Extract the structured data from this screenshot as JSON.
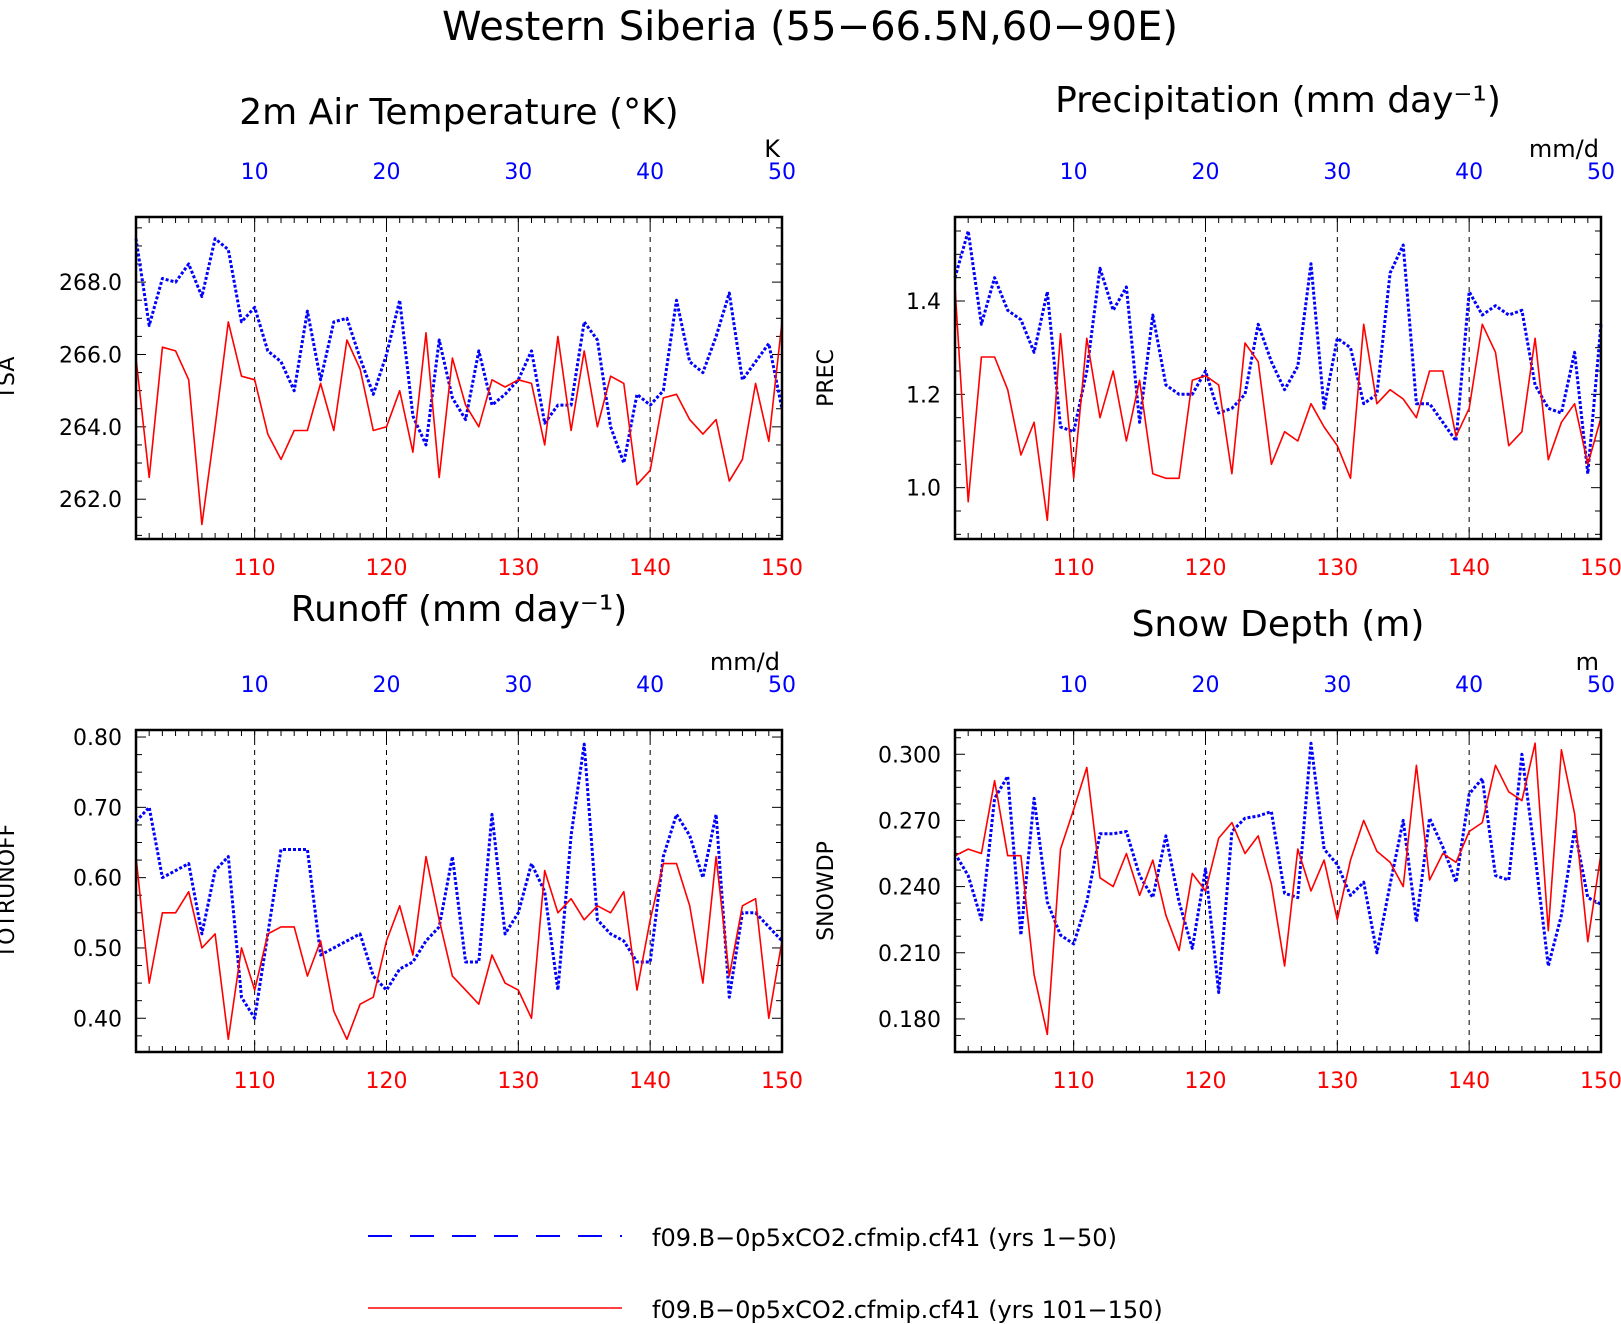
{
  "main_title": "Western Siberia (55−66.5N,60−90E)",
  "colors": {
    "series_a": "#0000ff",
    "series_b": "#ff0000",
    "axis": "#000000"
  },
  "legend": [
    {
      "label": "f09.B−0p5xCO2.cfmip.cf41 (yrs 1−50)",
      "color": "#0000ff",
      "style": "dashed"
    },
    {
      "label": "f09.B−0p5xCO2.cfmip.cf41 (yrs 101−150)",
      "color": "#ff0000",
      "style": "solid"
    }
  ],
  "chart_data": [
    {
      "type": "line",
      "title": "2m Air Temperature (°K)",
      "ylabel": "TSA",
      "units": "K",
      "ylim": [
        260.9,
        269.8
      ],
      "yticks": [
        262.0,
        264.0,
        266.0,
        268.0
      ],
      "ytick_labels": [
        "262.0",
        "264.0",
        "266.0",
        "268.0"
      ],
      "grid_vertical": true,
      "top_axis": {
        "range": [
          1,
          50
        ],
        "ticks": [
          10,
          20,
          30,
          40,
          50
        ],
        "color": "#0000ff"
      },
      "bottom_axis": {
        "range": [
          101,
          150
        ],
        "ticks": [
          110,
          120,
          130,
          140,
          150
        ],
        "color": "#ff0000"
      },
      "series": [
        {
          "name": "f09.B−0p5xCO2.cfmip.cf41 (yrs 1−50)",
          "color": "#0000ff",
          "style": "dashed",
          "x": [
            1,
            2,
            3,
            4,
            5,
            6,
            7,
            8,
            9,
            10,
            11,
            12,
            13,
            14,
            15,
            16,
            17,
            18,
            19,
            20,
            21,
            22,
            23,
            24,
            25,
            26,
            27,
            28,
            29,
            30,
            31,
            32,
            33,
            34,
            35,
            36,
            37,
            38,
            39,
            40,
            41,
            42,
            43,
            44,
            45,
            46,
            47,
            48,
            49,
            50
          ],
          "values": [
            269.2,
            266.8,
            268.1,
            268.0,
            268.5,
            267.6,
            269.2,
            268.9,
            266.9,
            267.3,
            266.1,
            265.8,
            265.0,
            267.2,
            265.3,
            266.9,
            267.0,
            265.9,
            264.9,
            266.0,
            267.5,
            264.3,
            263.5,
            266.4,
            264.8,
            264.2,
            266.1,
            264.6,
            264.9,
            265.3,
            266.1,
            264.1,
            264.6,
            264.6,
            266.9,
            266.4,
            264.0,
            263.0,
            264.9,
            264.6,
            265.0,
            267.5,
            265.8,
            265.5,
            266.5,
            267.7,
            265.3,
            265.8,
            266.3,
            264.5
          ]
        },
        {
          "name": "f09.B−0p5xCO2.cfmip.cf41 (yrs 101−150)",
          "color": "#ff0000",
          "style": "solid",
          "x": [
            101,
            102,
            103,
            104,
            105,
            106,
            107,
            108,
            109,
            110,
            111,
            112,
            113,
            114,
            115,
            116,
            117,
            118,
            119,
            120,
            121,
            122,
            123,
            124,
            125,
            126,
            127,
            128,
            129,
            130,
            131,
            132,
            133,
            134,
            135,
            136,
            137,
            138,
            139,
            140,
            141,
            142,
            143,
            144,
            145,
            146,
            147,
            148,
            149,
            150
          ],
          "values": [
            265.9,
            262.6,
            266.2,
            266.1,
            265.3,
            261.3,
            264.0,
            266.9,
            265.4,
            265.3,
            263.8,
            263.1,
            263.9,
            263.9,
            265.2,
            263.9,
            266.4,
            265.6,
            263.9,
            264.0,
            265.0,
            263.3,
            266.6,
            262.6,
            265.9,
            264.6,
            264.0,
            265.3,
            265.1,
            265.3,
            265.2,
            263.5,
            266.5,
            263.9,
            266.1,
            264.0,
            265.4,
            265.2,
            262.4,
            262.8,
            264.8,
            264.9,
            264.2,
            263.8,
            264.2,
            262.5,
            263.1,
            265.2,
            263.6,
            266.9
          ]
        }
      ]
    },
    {
      "type": "line",
      "title": "Precipitation (mm day⁻¹)",
      "ylabel": "PREC",
      "units": "mm/d",
      "ylim": [
        0.89,
        1.58
      ],
      "yticks": [
        1.0,
        1.2,
        1.4
      ],
      "ytick_labels": [
        "1.0",
        "1.2",
        "1.4"
      ],
      "grid_vertical": true,
      "top_axis": {
        "range": [
          1,
          50
        ],
        "ticks": [
          10,
          20,
          30,
          40,
          50
        ],
        "color": "#0000ff"
      },
      "bottom_axis": {
        "range": [
          101,
          150
        ],
        "ticks": [
          110,
          120,
          130,
          140,
          150
        ],
        "color": "#ff0000"
      },
      "series": [
        {
          "name": "f09.B−0p5xCO2.cfmip.cf41 (yrs 1−50)",
          "color": "#0000ff",
          "style": "dashed",
          "x": [
            1,
            2,
            3,
            4,
            5,
            6,
            7,
            8,
            9,
            10,
            11,
            12,
            13,
            14,
            15,
            16,
            17,
            18,
            19,
            20,
            21,
            22,
            23,
            24,
            25,
            26,
            27,
            28,
            29,
            30,
            31,
            32,
            33,
            34,
            35,
            36,
            37,
            38,
            39,
            40,
            41,
            42,
            43,
            44,
            45,
            46,
            47,
            48,
            49,
            50
          ],
          "values": [
            1.45,
            1.55,
            1.35,
            1.45,
            1.38,
            1.36,
            1.29,
            1.42,
            1.13,
            1.12,
            1.25,
            1.47,
            1.38,
            1.43,
            1.14,
            1.37,
            1.22,
            1.2,
            1.2,
            1.25,
            1.16,
            1.17,
            1.2,
            1.35,
            1.27,
            1.21,
            1.26,
            1.48,
            1.17,
            1.32,
            1.3,
            1.18,
            1.2,
            1.46,
            1.52,
            1.18,
            1.18,
            1.14,
            1.1,
            1.42,
            1.37,
            1.39,
            1.37,
            1.38,
            1.22,
            1.17,
            1.16,
            1.29,
            1.03,
            1.35
          ]
        },
        {
          "name": "f09.B−0p5xCO2.cfmip.cf41 (yrs 101−150)",
          "color": "#ff0000",
          "style": "solid",
          "x": [
            101,
            102,
            103,
            104,
            105,
            106,
            107,
            108,
            109,
            110,
            111,
            112,
            113,
            114,
            115,
            116,
            117,
            118,
            119,
            120,
            121,
            122,
            123,
            124,
            125,
            126,
            127,
            128,
            129,
            130,
            131,
            132,
            133,
            134,
            135,
            136,
            137,
            138,
            139,
            140,
            141,
            142,
            143,
            144,
            145,
            146,
            147,
            148,
            149,
            150
          ],
          "values": [
            1.43,
            0.97,
            1.28,
            1.28,
            1.21,
            1.07,
            1.14,
            0.93,
            1.33,
            1.02,
            1.32,
            1.15,
            1.25,
            1.1,
            1.23,
            1.03,
            1.02,
            1.02,
            1.23,
            1.24,
            1.22,
            1.03,
            1.31,
            1.27,
            1.05,
            1.12,
            1.1,
            1.18,
            1.13,
            1.09,
            1.02,
            1.35,
            1.18,
            1.21,
            1.19,
            1.15,
            1.25,
            1.25,
            1.11,
            1.17,
            1.35,
            1.29,
            1.09,
            1.12,
            1.32,
            1.06,
            1.14,
            1.18,
            1.05,
            1.15
          ]
        }
      ]
    },
    {
      "type": "line",
      "title": "Runoff (mm day⁻¹)",
      "ylabel": "TOTRUNOFF",
      "units": "mm/d",
      "ylim": [
        0.352,
        0.81
      ],
      "yticks": [
        0.4,
        0.5,
        0.6,
        0.7,
        0.8
      ],
      "ytick_labels": [
        "0.40",
        "0.50",
        "0.60",
        "0.70",
        "0.80"
      ],
      "grid_vertical": true,
      "top_axis": {
        "range": [
          1,
          50
        ],
        "ticks": [
          10,
          20,
          30,
          40,
          50
        ],
        "color": "#0000ff"
      },
      "bottom_axis": {
        "range": [
          101,
          150
        ],
        "ticks": [
          110,
          120,
          130,
          140,
          150
        ],
        "color": "#ff0000"
      },
      "series": [
        {
          "name": "f09.B−0p5xCO2.cfmip.cf41 (yrs 1−50)",
          "color": "#0000ff",
          "style": "dashed",
          "x": [
            1,
            2,
            3,
            4,
            5,
            6,
            7,
            8,
            9,
            10,
            11,
            12,
            13,
            14,
            15,
            16,
            17,
            18,
            19,
            20,
            21,
            22,
            23,
            24,
            25,
            26,
            27,
            28,
            29,
            30,
            31,
            32,
            33,
            34,
            35,
            36,
            37,
            38,
            39,
            40,
            41,
            42,
            43,
            44,
            45,
            46,
            47,
            48,
            49,
            50
          ],
          "values": [
            0.68,
            0.7,
            0.6,
            0.61,
            0.62,
            0.52,
            0.61,
            0.63,
            0.43,
            0.4,
            0.52,
            0.64,
            0.64,
            0.64,
            0.49,
            0.5,
            0.51,
            0.52,
            0.46,
            0.44,
            0.47,
            0.48,
            0.51,
            0.53,
            0.63,
            0.48,
            0.48,
            0.69,
            0.52,
            0.55,
            0.62,
            0.58,
            0.44,
            0.66,
            0.79,
            0.54,
            0.52,
            0.51,
            0.48,
            0.48,
            0.63,
            0.69,
            0.66,
            0.6,
            0.69,
            0.43,
            0.55,
            0.55,
            0.53,
            0.51
          ]
        },
        {
          "name": "f09.B−0p5xCO2.cfmip.cf41 (yrs 101−150)",
          "color": "#ff0000",
          "style": "solid",
          "x": [
            101,
            102,
            103,
            104,
            105,
            106,
            107,
            108,
            109,
            110,
            111,
            112,
            113,
            114,
            115,
            116,
            117,
            118,
            119,
            120,
            121,
            122,
            123,
            124,
            125,
            126,
            127,
            128,
            129,
            130,
            131,
            132,
            133,
            134,
            135,
            136,
            137,
            138,
            139,
            140,
            141,
            142,
            143,
            144,
            145,
            146,
            147,
            148,
            149,
            150
          ],
          "values": [
            0.63,
            0.45,
            0.55,
            0.55,
            0.58,
            0.5,
            0.52,
            0.37,
            0.5,
            0.44,
            0.52,
            0.53,
            0.53,
            0.46,
            0.51,
            0.41,
            0.37,
            0.42,
            0.43,
            0.51,
            0.56,
            0.49,
            0.63,
            0.54,
            0.46,
            0.44,
            0.42,
            0.49,
            0.45,
            0.44,
            0.4,
            0.61,
            0.55,
            0.57,
            0.54,
            0.56,
            0.55,
            0.58,
            0.44,
            0.54,
            0.62,
            0.62,
            0.56,
            0.45,
            0.63,
            0.46,
            0.56,
            0.57,
            0.4,
            0.51
          ]
        }
      ]
    },
    {
      "type": "line",
      "title": "Snow Depth (m)",
      "ylabel": "SNOWDP",
      "units": "m",
      "ylim": [
        0.165,
        0.311
      ],
      "yticks": [
        0.18,
        0.21,
        0.24,
        0.27,
        0.3
      ],
      "ytick_labels": [
        "0.180",
        "0.210",
        "0.240",
        "0.270",
        "0.300"
      ],
      "grid_vertical": true,
      "top_axis": {
        "range": [
          1,
          50
        ],
        "ticks": [
          10,
          20,
          30,
          40,
          50
        ],
        "color": "#0000ff"
      },
      "bottom_axis": {
        "range": [
          101,
          150
        ],
        "ticks": [
          110,
          120,
          130,
          140,
          150
        ],
        "color": "#ff0000"
      },
      "series": [
        {
          "name": "f09.B−0p5xCO2.cfmip.cf41 (yrs 1−50)",
          "color": "#0000ff",
          "style": "dashed",
          "x": [
            1,
            2,
            3,
            4,
            5,
            6,
            7,
            8,
            9,
            10,
            11,
            12,
            13,
            14,
            15,
            16,
            17,
            18,
            19,
            20,
            21,
            22,
            23,
            24,
            25,
            26,
            27,
            28,
            29,
            30,
            31,
            32,
            33,
            34,
            35,
            36,
            37,
            38,
            39,
            40,
            41,
            42,
            43,
            44,
            45,
            46,
            47,
            48,
            49,
            50
          ],
          "values": [
            0.255,
            0.245,
            0.225,
            0.28,
            0.29,
            0.218,
            0.28,
            0.233,
            0.218,
            0.214,
            0.233,
            0.264,
            0.264,
            0.265,
            0.245,
            0.235,
            0.263,
            0.233,
            0.212,
            0.248,
            0.192,
            0.265,
            0.271,
            0.272,
            0.274,
            0.237,
            0.235,
            0.305,
            0.257,
            0.25,
            0.236,
            0.242,
            0.21,
            0.241,
            0.27,
            0.224,
            0.271,
            0.258,
            0.242,
            0.282,
            0.289,
            0.245,
            0.243,
            0.3,
            0.254,
            0.204,
            0.227,
            0.266,
            0.235,
            0.232
          ]
        },
        {
          "name": "f09.B−0p5xCO2.cfmip.cf41 (yrs 101−150)",
          "color": "#ff0000",
          "style": "solid",
          "x": [
            101,
            102,
            103,
            104,
            105,
            106,
            107,
            108,
            109,
            110,
            111,
            112,
            113,
            114,
            115,
            116,
            117,
            118,
            119,
            120,
            121,
            122,
            123,
            124,
            125,
            126,
            127,
            128,
            129,
            130,
            131,
            132,
            133,
            134,
            135,
            136,
            137,
            138,
            139,
            140,
            141,
            142,
            143,
            144,
            145,
            146,
            147,
            148,
            149,
            150
          ],
          "values": [
            0.254,
            0.257,
            0.255,
            0.288,
            0.254,
            0.254,
            0.2,
            0.173,
            0.257,
            0.275,
            0.294,
            0.244,
            0.24,
            0.255,
            0.236,
            0.252,
            0.227,
            0.211,
            0.246,
            0.238,
            0.262,
            0.269,
            0.255,
            0.263,
            0.241,
            0.204,
            0.257,
            0.238,
            0.252,
            0.225,
            0.252,
            0.27,
            0.256,
            0.251,
            0.24,
            0.295,
            0.243,
            0.255,
            0.251,
            0.265,
            0.269,
            0.295,
            0.283,
            0.279,
            0.305,
            0.22,
            0.302,
            0.273,
            0.215,
            0.255
          ]
        }
      ]
    }
  ]
}
